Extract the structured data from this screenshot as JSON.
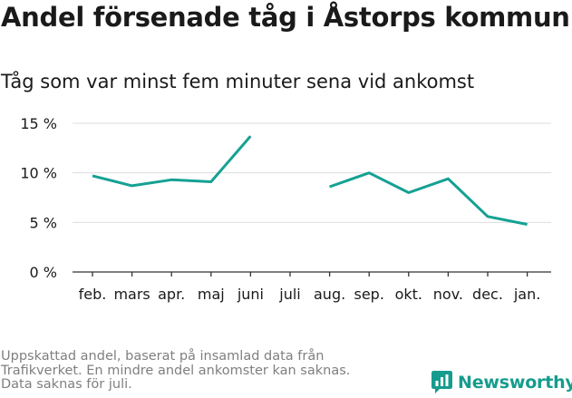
{
  "title": "Andel försenade tåg i Åstorps kommun",
  "subtitle": "Tåg som var minst fem minuter sena vid ankomst",
  "chart_data": {
    "type": "line",
    "categories": [
      "feb.",
      "mars",
      "apr.",
      "maj",
      "juni",
      "juli",
      "aug.",
      "sep.",
      "okt.",
      "nov.",
      "dec.",
      "jan."
    ],
    "series": [
      {
        "values": [
          9.7,
          8.7,
          9.3,
          9.1,
          13.7,
          null,
          8.6,
          10.0,
          8.0,
          9.4,
          5.6,
          4.8
        ]
      }
    ],
    "yticks": [
      "0 %",
      "5 %",
      "10 %",
      "15 %"
    ],
    "ytick_values": [
      0,
      5,
      10,
      15
    ],
    "ylim": [
      0,
      15
    ],
    "grid": true,
    "line_color": "#15a193",
    "grid_color": "#dcdcdc"
  },
  "footnote": [
    "Uppskattad andel, baserat på insamlad data från",
    "Trafikverket. En mindre andel ankomster kan saknas.",
    "Data saknas för juli."
  ],
  "brand": {
    "name": "Newsworthy",
    "color": "#169c8e",
    "logo_icon": "newsworthy-bar-chart-icon"
  }
}
